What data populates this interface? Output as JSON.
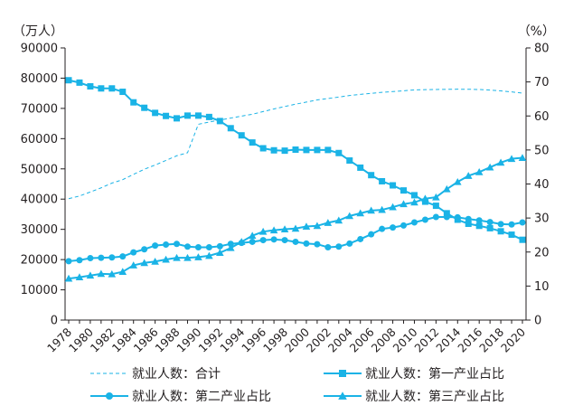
{
  "chart_data": {
    "type": "line",
    "title": "",
    "colors": {
      "line": "#1ab3e6",
      "axis": "#231f20"
    },
    "left_axis": {
      "unit_label": "（万人）",
      "ylim": [
        0,
        90000
      ],
      "ticks": [
        "0",
        "10000",
        "20000",
        "30000",
        "40000",
        "50000",
        "60000",
        "70000",
        "80000",
        "90000"
      ]
    },
    "right_axis": {
      "unit_label": "（%）",
      "ylim": [
        0,
        80
      ],
      "ticks": [
        "0",
        "10",
        "20",
        "30",
        "40",
        "50",
        "60",
        "70",
        "80"
      ]
    },
    "x": [
      1978,
      1979,
      1980,
      1981,
      1982,
      1983,
      1984,
      1985,
      1986,
      1987,
      1988,
      1989,
      1990,
      1991,
      1992,
      1993,
      1994,
      1995,
      1996,
      1997,
      1998,
      1999,
      2000,
      2001,
      2002,
      2003,
      2004,
      2005,
      2006,
      2007,
      2008,
      2009,
      2010,
      2011,
      2012,
      2013,
      2014,
      2015,
      2016,
      2017,
      2018,
      2019,
      2020
    ],
    "x_tick_labels": [
      "1978",
      "1980",
      "1982",
      "1984",
      "1986",
      "1988",
      "1990",
      "1992",
      "1994",
      "1996",
      "1998",
      "2000",
      "2002",
      "2004",
      "2006",
      "2008",
      "2010",
      "2012",
      "2014",
      "2016",
      "2018",
      "2020"
    ],
    "legend_position": "bottom",
    "series": [
      {
        "name": "就业人数：合计",
        "axis": "left",
        "marker": "none",
        "style": "dashed",
        "values": [
          40152,
          41024,
          42361,
          43725,
          45295,
          46436,
          48197,
          49873,
          51282,
          52783,
          54334,
          55329,
          64749,
          65491,
          66152,
          66808,
          67455,
          68065,
          68950,
          69820,
          70637,
          71394,
          72085,
          72797,
          73280,
          73736,
          74264,
          74647,
          74978,
          75321,
          75564,
          75828,
          76105,
          76196,
          76254,
          76301,
          76349,
          76320,
          76245,
          76058,
          75782,
          75447,
          75064
        ]
      },
      {
        "name": "就业人数：第一产业占比",
        "axis": "right",
        "marker": "square",
        "style": "solid",
        "values": [
          70.5,
          69.8,
          68.7,
          68.1,
          68.1,
          67.1,
          64.0,
          62.4,
          60.9,
          60.0,
          59.3,
          60.1,
          60.1,
          59.7,
          58.5,
          56.4,
          54.3,
          52.2,
          50.5,
          49.9,
          49.8,
          50.1,
          50.0,
          50.0,
          50.0,
          49.1,
          46.9,
          44.8,
          42.6,
          40.8,
          39.6,
          38.1,
          36.7,
          34.8,
          33.6,
          31.4,
          29.5,
          28.3,
          27.7,
          27.0,
          26.1,
          25.1,
          23.6
        ]
      },
      {
        "name": "就业人数：第二产业占比",
        "axis": "right",
        "marker": "circle",
        "style": "solid",
        "values": [
          17.3,
          17.6,
          18.2,
          18.3,
          18.4,
          18.7,
          19.9,
          20.8,
          21.9,
          22.2,
          22.4,
          21.6,
          21.4,
          21.4,
          21.7,
          22.4,
          22.7,
          23.0,
          23.5,
          23.7,
          23.5,
          23.0,
          22.5,
          22.3,
          21.4,
          21.6,
          22.5,
          23.8,
          25.2,
          26.8,
          27.2,
          27.8,
          28.7,
          29.5,
          30.3,
          30.3,
          30.2,
          29.7,
          29.3,
          28.8,
          28.2,
          28.1,
          28.7
        ]
      },
      {
        "name": "就业人数：第三产业占比",
        "axis": "right",
        "marker": "triangle",
        "style": "solid",
        "values": [
          12.2,
          12.6,
          13.1,
          13.6,
          13.5,
          14.2,
          16.1,
          16.8,
          17.2,
          17.8,
          18.3,
          18.3,
          18.5,
          18.9,
          19.8,
          21.2,
          23.0,
          24.8,
          26.0,
          26.4,
          26.7,
          26.9,
          27.5,
          27.7,
          28.6,
          29.3,
          30.6,
          31.4,
          32.2,
          32.4,
          33.2,
          34.1,
          34.6,
          35.7,
          36.1,
          38.5,
          40.6,
          42.4,
          43.5,
          44.9,
          46.3,
          47.4,
          47.7
        ]
      }
    ]
  }
}
